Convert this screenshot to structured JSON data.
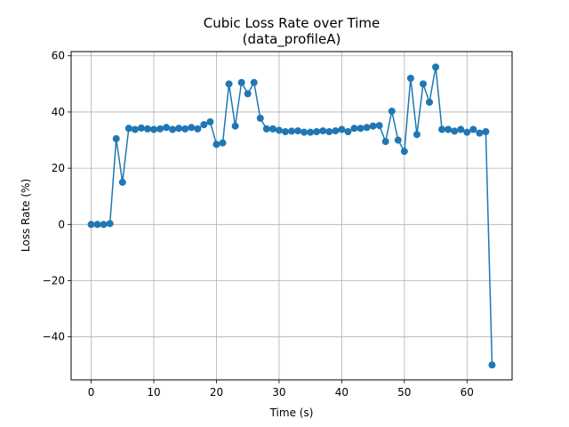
{
  "chart_data": {
    "type": "line",
    "title": "Cubic Loss Rate over Time",
    "subtitle": "(data_profileA)",
    "xlabel": "Time (s)",
    "ylabel": "Loss Rate (%)",
    "xlim": [
      -3.2,
      67.2
    ],
    "ylim": [
      -55.3,
      61.5
    ],
    "xticks": [
      0,
      10,
      20,
      30,
      40,
      50,
      60
    ],
    "yticks": [
      -40,
      -20,
      0,
      20,
      40,
      60
    ],
    "xtick_labels": [
      "0",
      "10",
      "20",
      "30",
      "40",
      "50",
      "60"
    ],
    "ytick_labels": [
      "−40",
      "−20",
      "0",
      "20",
      "40",
      "60"
    ],
    "grid": true,
    "color": "#1f77b4",
    "marker": "circle",
    "x": [
      0,
      1,
      2,
      3,
      4,
      5,
      6,
      7,
      8,
      9,
      10,
      11,
      12,
      13,
      14,
      15,
      16,
      17,
      18,
      19,
      20,
      21,
      22,
      23,
      24,
      25,
      26,
      27,
      28,
      29,
      30,
      31,
      32,
      33,
      34,
      35,
      36,
      37,
      38,
      39,
      40,
      41,
      42,
      43,
      44,
      45,
      46,
      47,
      48,
      49,
      50,
      51,
      52,
      53,
      54,
      55,
      56,
      57,
      58,
      59,
      60,
      61,
      62,
      63,
      64
    ],
    "y": [
      0,
      0,
      0,
      0.3,
      30.5,
      15,
      34.2,
      33.8,
      34.3,
      34,
      33.8,
      34,
      34.5,
      33.8,
      34.2,
      34,
      34.5,
      34,
      35.5,
      36.5,
      28.5,
      29,
      50,
      35,
      50.5,
      46.5,
      50.5,
      37.8,
      34,
      34,
      33.5,
      33,
      33.2,
      33.3,
      32.8,
      32.8,
      33,
      33.3,
      33,
      33.3,
      33.8,
      33,
      34.2,
      34.2,
      34.5,
      35,
      35.2,
      29.5,
      40.3,
      30,
      26,
      52,
      32,
      50,
      43.5,
      56,
      33.8,
      33.8,
      33.2,
      33.8,
      32.8,
      33.8,
      32.5,
      33,
      -50
    ]
  }
}
